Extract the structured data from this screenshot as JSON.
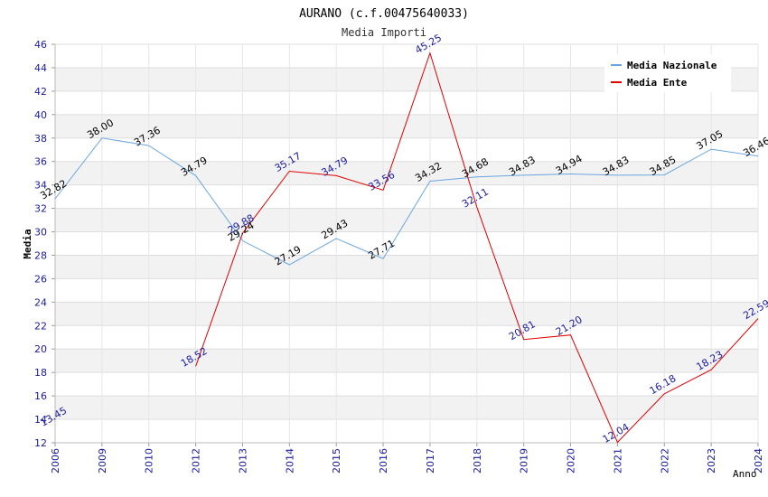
{
  "chart_data": {
    "type": "line",
    "title": "AURANO (c.f.00475640033)",
    "subtitle": "Media Importi",
    "xlabel": "Anno",
    "ylabel": "Media",
    "ylim": [
      12,
      46
    ],
    "y_ticks": [
      "12",
      "14",
      "16",
      "18",
      "20",
      "22",
      "24",
      "26",
      "28",
      "30",
      "32",
      "34",
      "36",
      "38",
      "40",
      "42",
      "44",
      "46"
    ],
    "categories": [
      "2006",
      "2009",
      "2010",
      "2012",
      "2013",
      "2014",
      "2015",
      "2016",
      "2017",
      "2018",
      "2019",
      "2020",
      "2021",
      "2022",
      "2023",
      "2024"
    ],
    "grid": true,
    "legend_position": "top-right",
    "series": [
      {
        "name": "Media Nazionale",
        "color": "#6aa6de",
        "label_color": "#000000",
        "values": [
          32.82,
          38.0,
          37.36,
          34.79,
          29.24,
          27.19,
          29.43,
          27.71,
          34.32,
          34.68,
          34.83,
          34.94,
          34.83,
          34.85,
          37.05,
          36.46
        ],
        "labels": [
          "32.82",
          "38.00",
          "37.36",
          "34.79",
          "29.24",
          "27.19",
          "29.43",
          "27.71",
          "34.32",
          "34.68",
          "34.83",
          "34.94",
          "34.83",
          "34.85",
          "37.05",
          "36.46"
        ]
      },
      {
        "name": "Media Ente",
        "color": "#e00000",
        "label_color": "#1a1aa0",
        "values": [
          13.45,
          null,
          null,
          18.52,
          29.88,
          35.17,
          34.79,
          33.56,
          45.25,
          32.11,
          20.81,
          21.2,
          12.04,
          16.18,
          18.23,
          22.59
        ],
        "labels": [
          "13.45",
          "",
          "",
          "18.52",
          "29.88",
          "35.17",
          "34.79",
          "33.56",
          "45.25",
          "32.11",
          "20.81",
          "21.20",
          "12.04",
          "16.18",
          "18.23",
          "22.59"
        ]
      }
    ]
  }
}
